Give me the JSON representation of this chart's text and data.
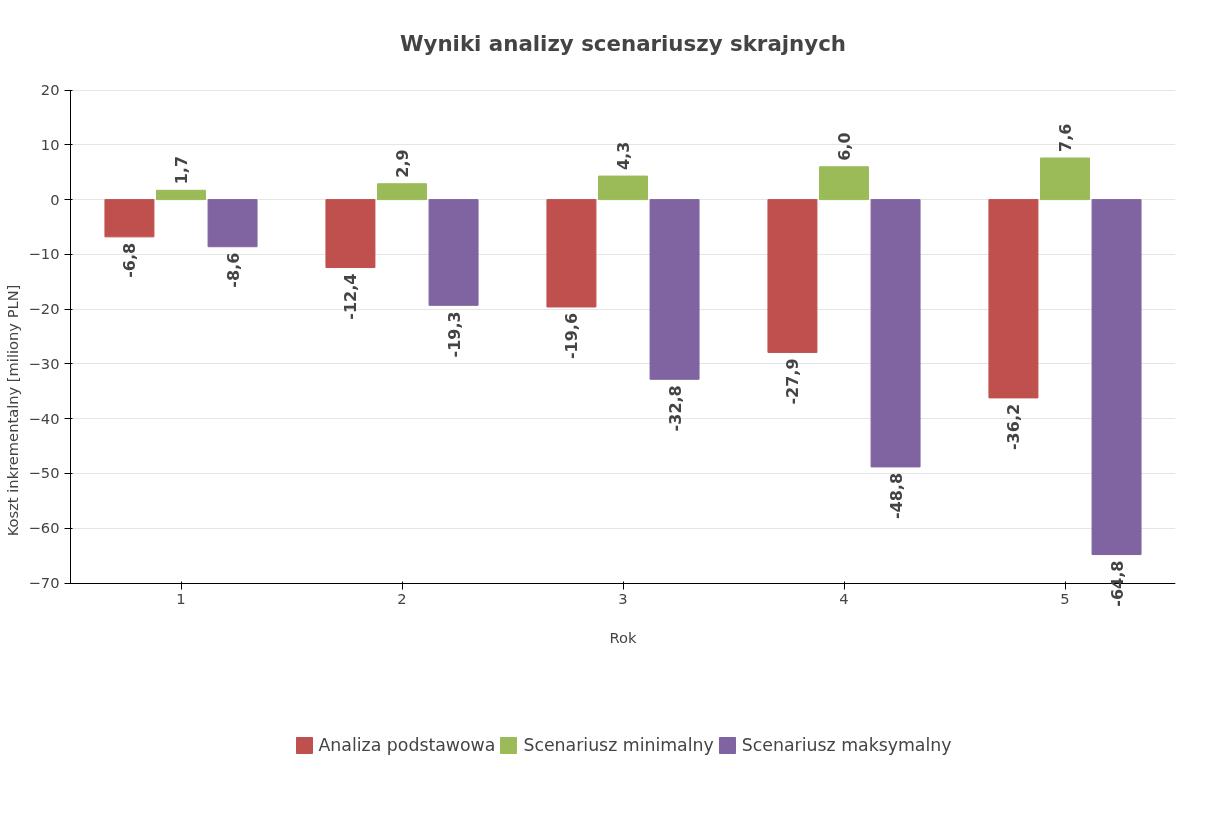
{
  "chart_data": {
    "type": "bar",
    "title": "Wyniki analizy scenariuszy skrajnych",
    "xlabel": "Rok",
    "ylabel": "Koszt inkrementalny [miliony PLN]",
    "categories": [
      "1",
      "2",
      "3",
      "4",
      "5"
    ],
    "series": [
      {
        "name": "Analiza podstawowa",
        "color": "#c0504d",
        "values": [
          -6.8,
          -12.4,
          -19.6,
          -27.9,
          -36.2
        ],
        "value_labels": [
          "-6,8",
          "-12,4",
          "-19,6",
          "-27,9",
          "-36,2"
        ]
      },
      {
        "name": "Scenariusz minimalny",
        "color": "#9bbb59",
        "values": [
          1.7,
          2.9,
          4.3,
          6.0,
          7.6
        ],
        "value_labels": [
          "1,7",
          "2,9",
          "4,3",
          "6,0",
          "7,6"
        ]
      },
      {
        "name": "Scenariusz maksymalny",
        "color": "#8064a2",
        "values": [
          -8.6,
          -19.3,
          -32.8,
          -48.8,
          -64.8
        ],
        "value_labels": [
          "-8,6",
          "-19,3",
          "-32,8",
          "-48,8",
          "-64,8"
        ]
      }
    ],
    "ylim": [
      -70,
      20
    ],
    "yticks": [
      -70,
      -60,
      -50,
      -40,
      -30,
      -20,
      -10,
      0,
      10,
      20
    ],
    "grid": "y",
    "legend": "bottom"
  }
}
